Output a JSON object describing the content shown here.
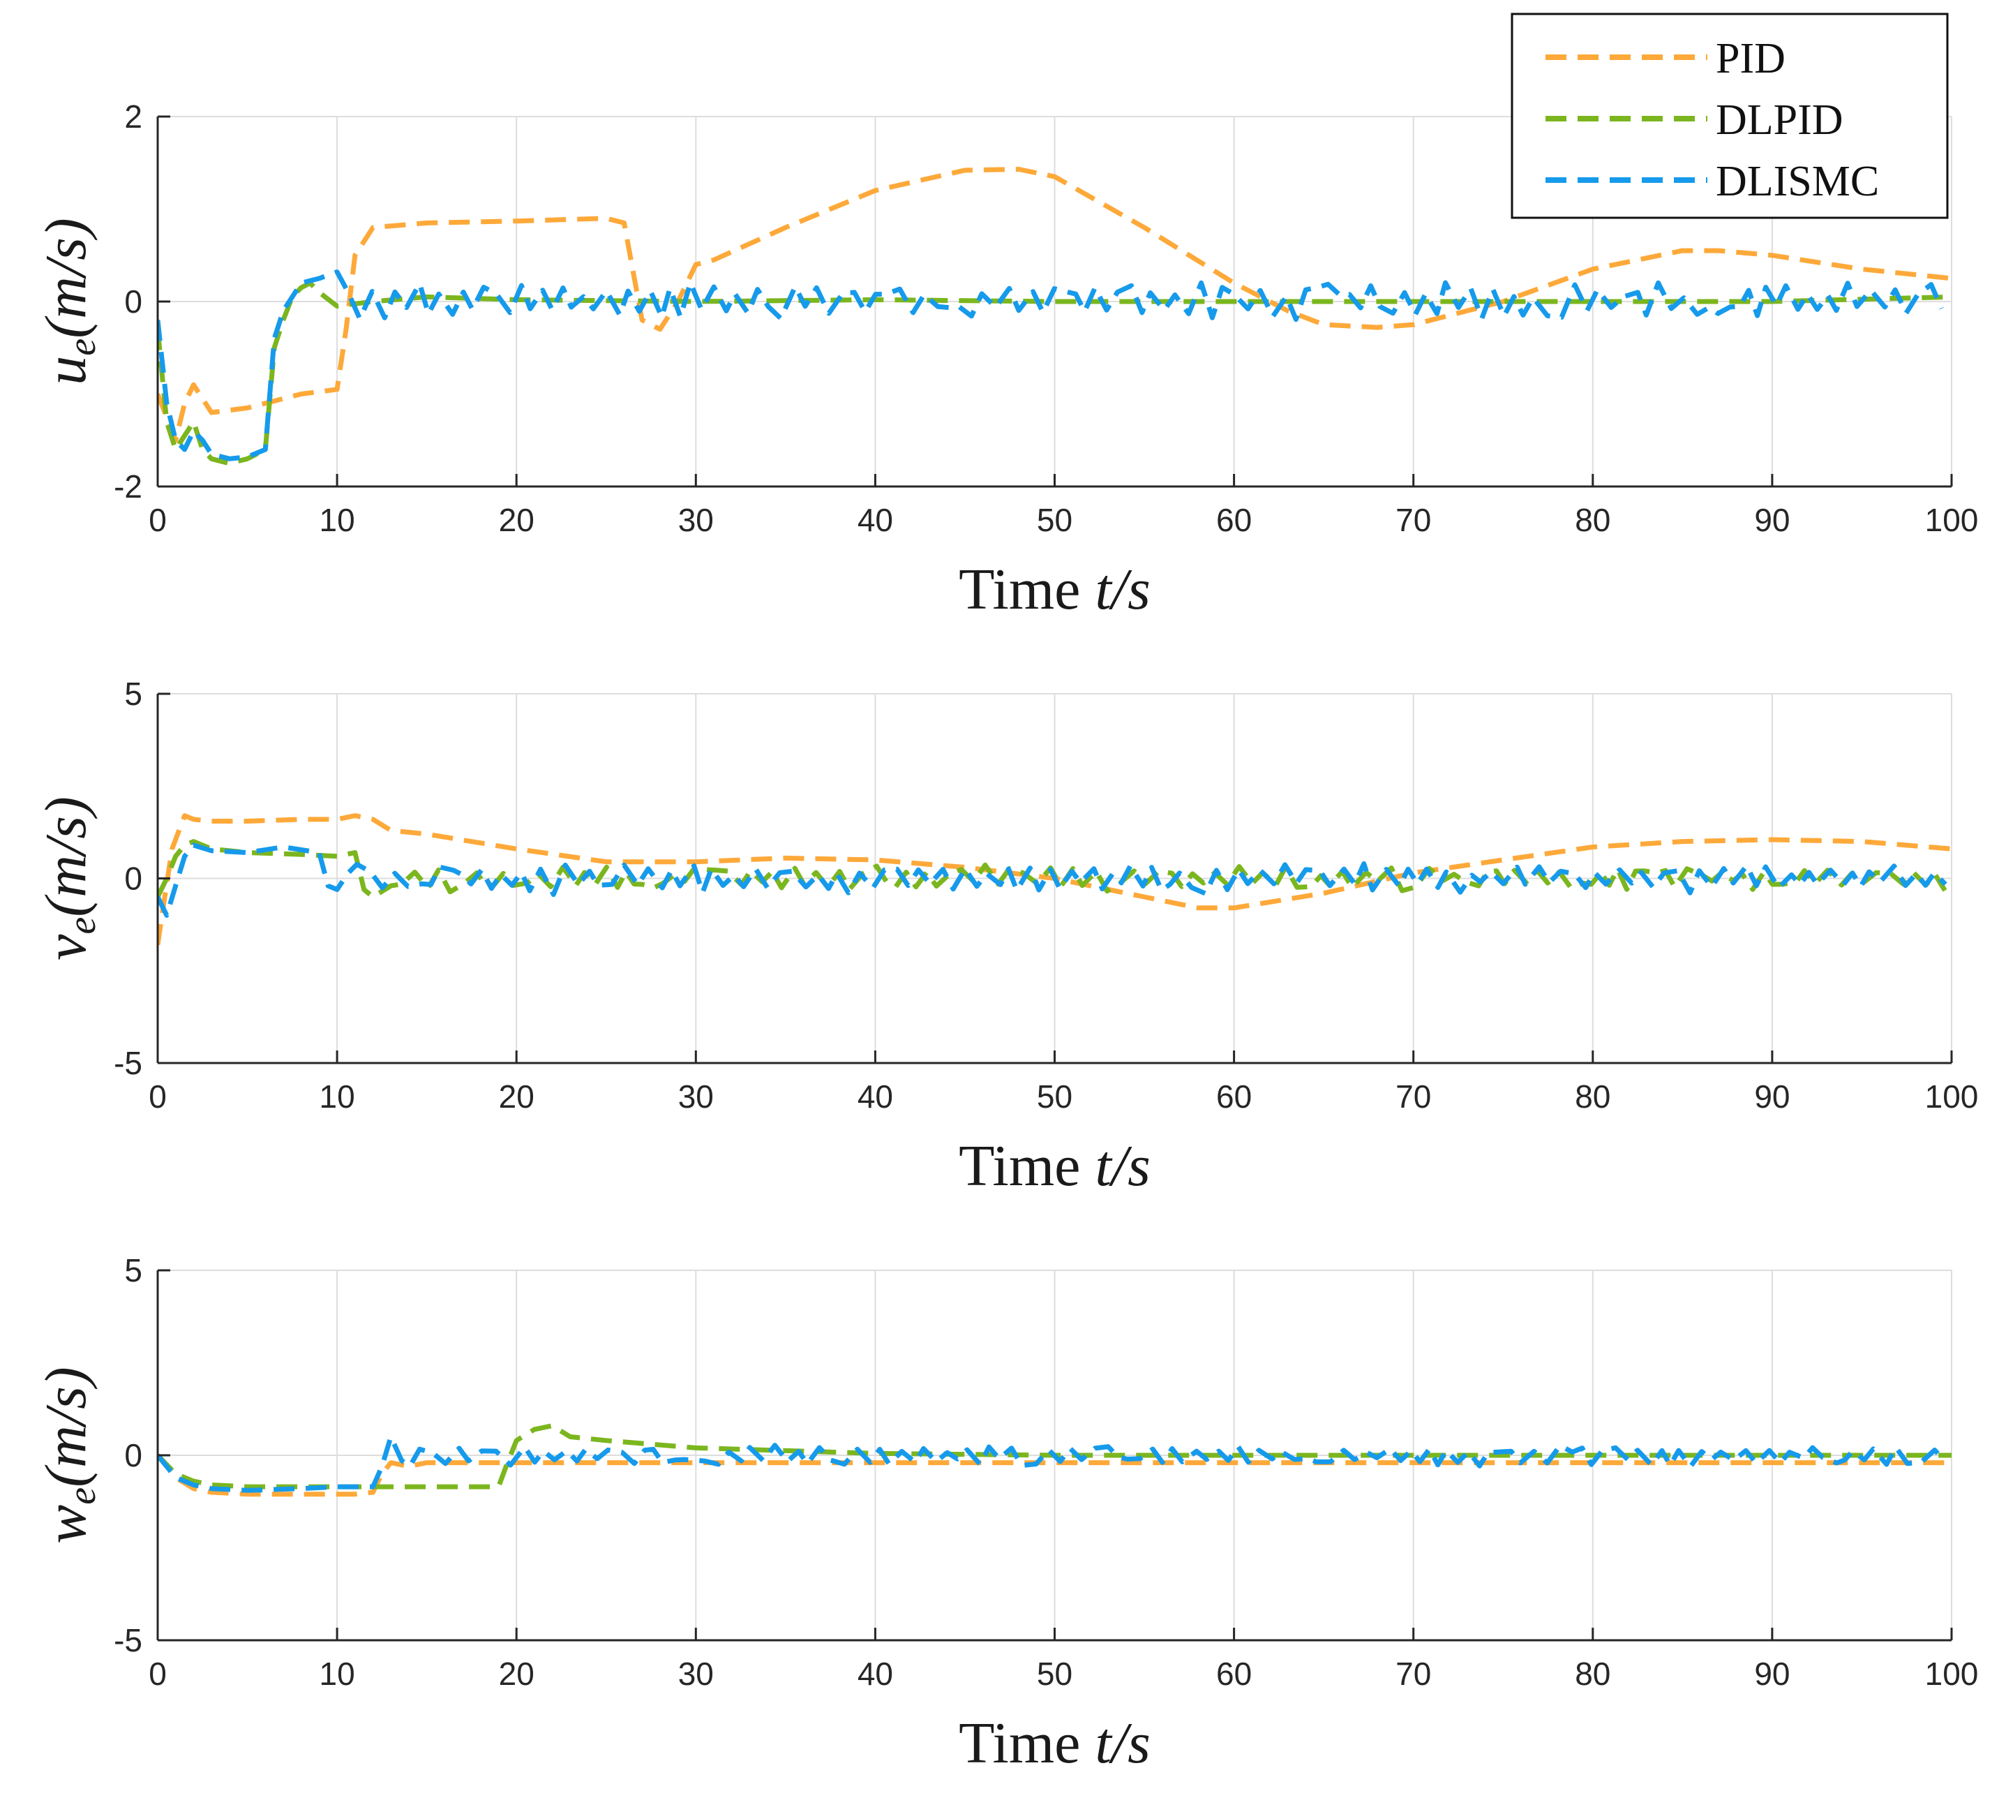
{
  "colors": {
    "PID": "#FDA93A",
    "DLPID": "#7BB61E",
    "DLISMC": "#169AEB",
    "grid": "#DDDDDD",
    "axis": "#262626"
  },
  "legend": [
    {
      "name": "PID",
      "color_key": "PID"
    },
    {
      "name": "DLPID",
      "color_key": "DLPID"
    },
    {
      "name": "DLISMC",
      "color_key": "DLISMC"
    }
  ],
  "chart_data": [
    {
      "type": "line",
      "id": "u",
      "xlabel": {
        "main": "Time ",
        "var": "t/s"
      },
      "ylabel": {
        "var": "u",
        "sub": "e",
        "unit": "(m/s)"
      },
      "xlim": [
        0,
        100
      ],
      "ylim": [
        -2,
        2
      ],
      "xticks": [
        0,
        10,
        20,
        30,
        40,
        50,
        60,
        70,
        80,
        90,
        100
      ],
      "yticks": [
        -2,
        0,
        2
      ],
      "series": [
        {
          "name": "PID",
          "color_key": "PID",
          "x": [
            0,
            1,
            1.5,
            2,
            3,
            5,
            8,
            10,
            10.5,
            11,
            12,
            15,
            20,
            25,
            26,
            27,
            28,
            29,
            30,
            31,
            35,
            40,
            45,
            48,
            50,
            55,
            60,
            63,
            65,
            68,
            70,
            75,
            80,
            85,
            87,
            90,
            95,
            100
          ],
          "y": [
            -1.0,
            -1.5,
            -1.1,
            -0.9,
            -1.2,
            -1.15,
            -1.0,
            -0.95,
            -0.3,
            0.5,
            0.8,
            0.85,
            0.87,
            0.9,
            0.85,
            -0.2,
            -0.3,
            0.0,
            0.4,
            0.45,
            0.8,
            1.2,
            1.42,
            1.43,
            1.35,
            0.8,
            0.2,
            -0.1,
            -0.25,
            -0.28,
            -0.25,
            0.0,
            0.35,
            0.55,
            0.55,
            0.5,
            0.35,
            0.25
          ]
        },
        {
          "name": "DLPID",
          "color_key": "DLPID",
          "x": [
            0,
            0.5,
            1,
            2,
            2.5,
            3,
            4,
            5,
            6,
            6.5,
            7,
            7.5,
            8,
            8.5,
            9,
            10,
            12,
            15,
            20,
            30,
            40,
            50,
            60,
            70,
            80,
            90,
            100
          ],
          "y": [
            -0.3,
            -1.3,
            -1.6,
            -1.3,
            -1.6,
            -1.7,
            -1.75,
            -1.7,
            -1.6,
            -0.5,
            -0.2,
            0.05,
            0.15,
            0.2,
            0.1,
            -0.05,
            0.0,
            0.05,
            0.02,
            0.0,
            0.02,
            0.0,
            0.0,
            0.0,
            0.0,
            0.0,
            0.05
          ],
          "noise_from": 10,
          "noise_amp": 0.05
        },
        {
          "name": "DLISMC",
          "color_key": "DLISMC",
          "x": [
            0,
            0.5,
            1,
            1.5,
            2,
            2.5,
            3,
            4,
            5,
            6,
            6.5,
            7,
            8,
            9,
            10
          ],
          "y": [
            -0.2,
            -1.1,
            -1.5,
            -1.6,
            -1.4,
            -1.5,
            -1.65,
            -1.7,
            -1.68,
            -1.6,
            -0.4,
            -0.1,
            0.2,
            0.25,
            0.32
          ],
          "noise_from": 10,
          "noise_amp": 0.18
        }
      ]
    },
    {
      "type": "line",
      "id": "v",
      "xlabel": {
        "main": "Time ",
        "var": "t/s"
      },
      "ylabel": {
        "var": "v",
        "sub": "e",
        "unit": "(m/s)"
      },
      "xlim": [
        0,
        100
      ],
      "ylim": [
        -5,
        5
      ],
      "xticks": [
        0,
        10,
        20,
        30,
        40,
        50,
        60,
        70,
        80,
        90,
        100
      ],
      "yticks": [
        -5,
        0,
        5
      ],
      "series": [
        {
          "name": "PID",
          "color_key": "PID",
          "x": [
            0,
            0.3,
            0.8,
            1.5,
            2,
            3,
            5,
            8,
            10,
            11,
            12,
            13,
            15,
            20,
            25,
            30,
            35,
            40,
            45,
            50,
            55,
            58,
            60,
            65,
            70,
            75,
            80,
            85,
            90,
            95,
            100
          ],
          "y": [
            -1.8,
            -0.8,
            0.8,
            1.7,
            1.6,
            1.55,
            1.55,
            1.6,
            1.6,
            1.7,
            1.6,
            1.3,
            1.2,
            0.8,
            0.45,
            0.45,
            0.55,
            0.5,
            0.3,
            0.0,
            -0.5,
            -0.8,
            -0.8,
            -0.4,
            0.15,
            0.5,
            0.85,
            1.0,
            1.05,
            1.0,
            0.8
          ]
        },
        {
          "name": "DLPID",
          "color_key": "DLPID",
          "x": [
            0,
            0.5,
            1,
            1.5,
            2,
            3,
            5,
            8,
            10,
            11,
            11.5,
            12,
            13
          ],
          "y": [
            -0.5,
            0.0,
            0.6,
            0.9,
            1.0,
            0.8,
            0.7,
            0.65,
            0.6,
            0.7,
            -0.3,
            -0.5,
            -0.2
          ],
          "noise_from": 13,
          "noise_amp": 0.3
        },
        {
          "name": "DLISMC",
          "color_key": "DLISMC",
          "x": [
            0,
            0.5,
            1,
            1.5,
            2,
            3,
            5,
            7,
            9,
            9.5,
            10
          ],
          "y": [
            -0.5,
            -1.0,
            -0.2,
            0.6,
            0.9,
            0.75,
            0.7,
            0.85,
            0.7,
            -0.2,
            -0.3
          ],
          "noise_from": 10,
          "noise_amp": 0.35
        }
      ]
    },
    {
      "type": "line",
      "id": "w",
      "xlabel": {
        "main": "Time ",
        "var": "t/s"
      },
      "ylabel": {
        "var": "w",
        "sub": "e",
        "unit": "(m/s)"
      },
      "xlim": [
        0,
        100
      ],
      "ylim": [
        -5,
        5
      ],
      "xticks": [
        0,
        10,
        20,
        30,
        40,
        50,
        60,
        70,
        80,
        90,
        100
      ],
      "yticks": [
        -5,
        0,
        5
      ],
      "series": [
        {
          "name": "PID",
          "color_key": "PID",
          "x": [
            0,
            1,
            2,
            3,
            5,
            8,
            10,
            11,
            12,
            12.5,
            13,
            14,
            15,
            20,
            30,
            40,
            50,
            60,
            70,
            80,
            90,
            100
          ],
          "y": [
            0.0,
            -0.6,
            -0.9,
            -1.0,
            -1.05,
            -1.05,
            -1.05,
            -1.05,
            -1.0,
            -0.5,
            -0.2,
            -0.3,
            -0.2,
            -0.2,
            -0.2,
            -0.2,
            -0.2,
            -0.2,
            -0.2,
            -0.2,
            -0.2,
            -0.2
          ]
        },
        {
          "name": "DLPID",
          "color_key": "DLPID",
          "x": [
            0,
            1,
            2,
            3,
            5,
            8,
            10,
            12,
            15,
            19,
            19.5,
            20,
            21,
            22,
            23,
            25,
            30,
            40,
            50,
            60,
            70,
            80,
            90,
            100
          ],
          "y": [
            0.0,
            -0.5,
            -0.7,
            -0.8,
            -0.85,
            -0.85,
            -0.85,
            -0.85,
            -0.85,
            -0.85,
            -0.2,
            0.4,
            0.7,
            0.8,
            0.5,
            0.4,
            0.2,
            0.05,
            0.0,
            0.0,
            0.0,
            0.0,
            0.0,
            0.0
          ]
        },
        {
          "name": "DLISMC",
          "color_key": "DLISMC",
          "x": [
            0,
            1,
            2,
            3,
            5,
            8,
            10,
            12,
            12.5,
            13
          ],
          "y": [
            0.0,
            -0.6,
            -0.8,
            -0.9,
            -0.95,
            -0.9,
            -0.85,
            -0.85,
            -0.3,
            0.5
          ],
          "noise_from": 13,
          "noise_amp": 0.25
        }
      ]
    }
  ]
}
